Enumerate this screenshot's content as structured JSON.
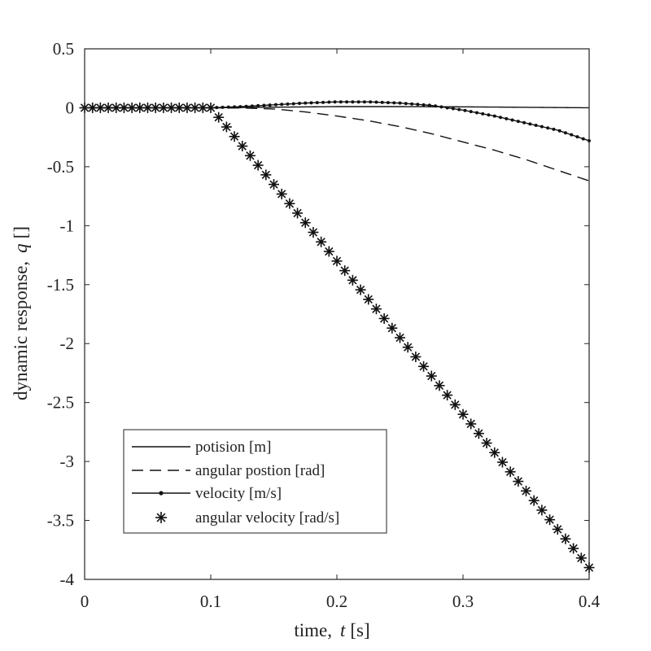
{
  "chart_data": {
    "type": "line",
    "xlabel_prefix": "time,",
    "xlabel_var": "t",
    "xlabel_unit": "[s]",
    "ylabel_prefix": "dynamic response,",
    "ylabel_var": "q",
    "ylabel_unit": "[]",
    "xlim": [
      0,
      0.4
    ],
    "ylim": [
      -4,
      0.5
    ],
    "xticks": [
      0,
      0.1,
      0.2,
      0.3,
      0.4
    ],
    "xtick_labels": [
      "0",
      "0.1",
      "0.2",
      "0.3",
      "0.4"
    ],
    "yticks": [
      0.5,
      0,
      -0.5,
      -1,
      -1.5,
      -2,
      -2.5,
      -3,
      -3.5,
      -4
    ],
    "ytick_labels": [
      "0.5",
      "0",
      "-0.5",
      "-1",
      "-1.5",
      "-2",
      "-2.5",
      "-3",
      "-3.5",
      "-4"
    ],
    "grid": false,
    "legend_position": "bottom-left",
    "series": [
      {
        "name": "potision [m]",
        "style": "solid",
        "x": [
          0,
          0.1,
          0.15,
          0.2,
          0.25,
          0.3,
          0.35,
          0.4
        ],
        "y": [
          0,
          0,
          0.005,
          0.01,
          0.01,
          0.008,
          0.004,
          0
        ]
      },
      {
        "name": "angular postion [rad]",
        "style": "dashed",
        "x": [
          0,
          0.1,
          0.125,
          0.15,
          0.175,
          0.2,
          0.225,
          0.25,
          0.275,
          0.3,
          0.325,
          0.35,
          0.375,
          0.4
        ],
        "y": [
          0,
          0,
          -0.002,
          -0.01,
          -0.035,
          -0.07,
          -0.11,
          -0.16,
          -0.22,
          -0.29,
          -0.36,
          -0.44,
          -0.53,
          -0.62
        ]
      },
      {
        "name": "velocity [m/s]",
        "style": "solid-dot",
        "x": [
          0,
          0.1,
          0.125,
          0.15,
          0.175,
          0.2,
          0.225,
          0.25,
          0.275,
          0.3,
          0.325,
          0.35,
          0.375,
          0.4
        ],
        "y": [
          0,
          0,
          0.01,
          0.025,
          0.04,
          0.05,
          0.05,
          0.04,
          0.02,
          -0.02,
          -0.07,
          -0.13,
          -0.19,
          -0.28
        ]
      },
      {
        "name": "angular velocity [rad/s]",
        "style": "star",
        "x": [
          0,
          0.1,
          0.4
        ],
        "y": [
          0,
          0,
          -3.9
        ]
      }
    ]
  }
}
